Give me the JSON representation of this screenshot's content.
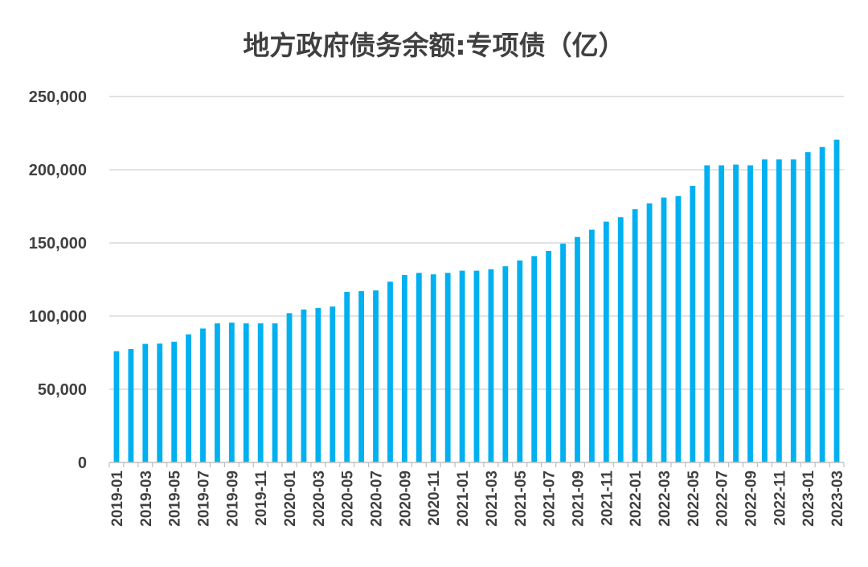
{
  "chart_data": {
    "type": "bar",
    "title": "地方政府债务余额:专项债（亿）",
    "xlabel": "",
    "ylabel": "",
    "ylim": [
      0,
      250000
    ],
    "yticks": [
      "0",
      "50,000",
      "100,000",
      "150,000",
      "200,000",
      "250,000"
    ],
    "ytick_values": [
      0,
      50000,
      100000,
      150000,
      200000,
      250000
    ],
    "grid": true,
    "bar_color": "#00B0F0",
    "categories": [
      "2019-01",
      "2019-02",
      "2019-03",
      "2019-04",
      "2019-05",
      "2019-06",
      "2019-07",
      "2019-08",
      "2019-09",
      "2019-10",
      "2019-11",
      "2019-12",
      "2020-01",
      "2020-02",
      "2020-03",
      "2020-04",
      "2020-05",
      "2020-06",
      "2020-07",
      "2020-08",
      "2020-09",
      "2020-10",
      "2020-11",
      "2020-12",
      "2021-01",
      "2021-02",
      "2021-03",
      "2021-04",
      "2021-05",
      "2021-06",
      "2021-07",
      "2021-08",
      "2021-09",
      "2021-10",
      "2021-11",
      "2021-12",
      "2022-01",
      "2022-02",
      "2022-03",
      "2022-04",
      "2022-05",
      "2022-06",
      "2022-07",
      "2022-08",
      "2022-09",
      "2022-10",
      "2022-11",
      "2022-12",
      "2023-01",
      "2023-02",
      "2023-03"
    ],
    "xtick_labels": [
      "2019-01",
      "2019-03",
      "2019-05",
      "2019-07",
      "2019-09",
      "2019-11",
      "2020-01",
      "2020-03",
      "2020-05",
      "2020-07",
      "2020-09",
      "2020-11",
      "2021-01",
      "2021-03",
      "2021-05",
      "2021-07",
      "2021-09",
      "2021-11",
      "2022-01",
      "2022-03",
      "2022-05",
      "2022-07",
      "2022-09",
      "2022-11",
      "2023-01",
      "2023-03"
    ],
    "values": [
      76000,
      77500,
      81000,
      81200,
      82500,
      87500,
      91500,
      95000,
      95500,
      95000,
      95000,
      95000,
      102000,
      104500,
      105500,
      106500,
      116500,
      117000,
      117500,
      123500,
      128000,
      129500,
      128500,
      129500,
      131000,
      131000,
      132000,
      134000,
      138000,
      141000,
      144500,
      149500,
      154000,
      159000,
      164500,
      167500,
      173000,
      177000,
      181000,
      182000,
      189000,
      203000,
      203000,
      203500,
      203000,
      207000,
      207000,
      207000,
      212000,
      215500,
      220500
    ]
  }
}
